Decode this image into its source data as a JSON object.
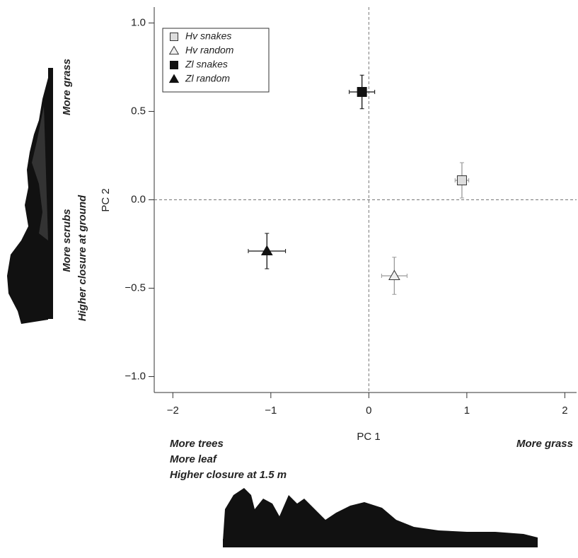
{
  "chart_data": {
    "type": "scatter",
    "x_label": "PC 1",
    "y_label": "PC 2",
    "xlim": [
      -2.19,
      2.12
    ],
    "ylim": [
      -1.09,
      1.09
    ],
    "xticks": [
      {
        "value": -2,
        "label": "−2"
      },
      {
        "value": -1,
        "label": "−1"
      },
      0,
      1,
      2
    ],
    "yticks": [
      {
        "value": 1,
        "label": "1.0"
      },
      {
        "value": 0.5,
        "label": "0.5"
      },
      {
        "value": 0,
        "label": "0.0"
      },
      {
        "value": -0.5,
        "label": "−0.5"
      },
      {
        "value": -1,
        "label": "−1.0"
      }
    ],
    "reference_lines": {
      "x": 0,
      "y": 0
    },
    "legend": "upper left",
    "series": [
      {
        "name": "Hv snakes",
        "marker": "square",
        "color": "#dddddd",
        "edge": "#333333",
        "bar_color": "#999999",
        "x": [
          0.95
        ],
        "y": [
          0.11
        ],
        "xerr": [
          0.07
        ],
        "yerr": [
          0.1
        ]
      },
      {
        "name": "Hv random",
        "marker": "triangle",
        "color": "#eeeeee",
        "edge": "#333333",
        "bar_color": "#999999",
        "x": [
          0.26
        ],
        "y": [
          -0.43
        ],
        "xerr": [
          0.13
        ],
        "yerr": [
          0.105
        ]
      },
      {
        "name": "Zl snakes",
        "marker": "square",
        "color": "#111111",
        "edge": "#111111",
        "bar_color": "#111111",
        "x": [
          -0.07
        ],
        "y": [
          0.61
        ],
        "xerr": [
          0.13
        ],
        "yerr": [
          0.095
        ]
      },
      {
        "name": "Zl random",
        "marker": "triangle",
        "color": "#111111",
        "edge": "#111111",
        "bar_color": "#111111",
        "x": [
          -1.04
        ],
        "y": [
          -0.29
        ],
        "xerr": [
          0.19
        ],
        "yerr": [
          0.1
        ]
      }
    ],
    "annotations": {
      "left_top": "More grass",
      "left_bottom": [
        "More scrubs",
        "Higher closure at ground"
      ],
      "bottom_left": [
        "More trees",
        "More leaf",
        "Higher closure at 1.5 m"
      ],
      "bottom_right": "More grass"
    }
  }
}
